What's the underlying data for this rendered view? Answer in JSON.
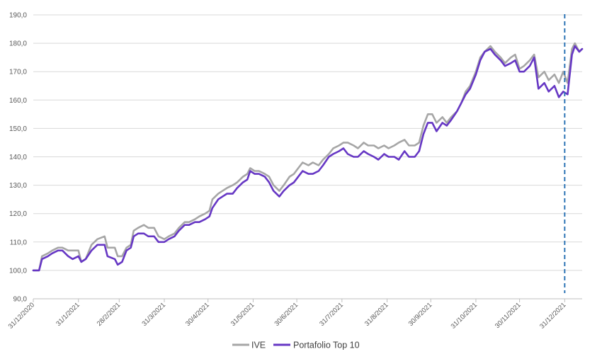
{
  "chart_data": {
    "type": "line",
    "title": "",
    "xlabel": "",
    "ylabel": "",
    "ylim": [
      90,
      190
    ],
    "y_ticks": [
      "90,0",
      "100,0",
      "110,0",
      "120,0",
      "130,0",
      "140,0",
      "150,0",
      "160,0",
      "170,0",
      "180,0",
      "190,0"
    ],
    "y_tick_values": [
      90,
      100,
      110,
      120,
      130,
      140,
      150,
      160,
      170,
      180,
      190
    ],
    "x_tick_labels": [
      "31/12/2020",
      "31/1/2021",
      "28/2/2021",
      "31/3/2021",
      "30/4/2021",
      "31/5/2021",
      "30/6/2021",
      "31/7/2021",
      "31/8/2021",
      "30/9/2021",
      "31/10/2021",
      "30/11/2021",
      "31/12/2021"
    ],
    "x_tick_dates": [
      "2020-12-31",
      "2021-01-31",
      "2021-02-28",
      "2021-03-31",
      "2021-04-30",
      "2021-05-31",
      "2021-06-30",
      "2021-07-31",
      "2021-08-31",
      "2021-09-30",
      "2021-10-31",
      "2021-11-30",
      "2021-12-31"
    ],
    "x_range": [
      "2020-12-31",
      "2022-01-12"
    ],
    "gridlines": "horizontal",
    "legend_position": "bottom",
    "vertical_marker": {
      "x": "2021-12-31",
      "style": "dashed",
      "color": "#2e75b6"
    },
    "series": [
      {
        "name": "IVE",
        "color": "#a6a6a6",
        "points": [
          [
            "2020-12-31",
            100
          ],
          [
            "2021-01-04",
            100
          ],
          [
            "2021-01-06",
            105
          ],
          [
            "2021-01-10",
            106
          ],
          [
            "2021-01-13",
            107
          ],
          [
            "2021-01-17",
            108
          ],
          [
            "2021-01-20",
            108
          ],
          [
            "2021-01-24",
            107
          ],
          [
            "2021-01-27",
            107
          ],
          [
            "2021-01-31",
            107
          ],
          [
            "2021-02-02",
            103
          ],
          [
            "2021-02-05",
            104
          ],
          [
            "2021-02-09",
            109
          ],
          [
            "2021-02-13",
            111
          ],
          [
            "2021-02-18",
            112
          ],
          [
            "2021-02-20",
            108
          ],
          [
            "2021-02-25",
            108
          ],
          [
            "2021-02-27",
            105
          ],
          [
            "2021-03-02",
            105
          ],
          [
            "2021-03-05",
            108
          ],
          [
            "2021-03-08",
            109
          ],
          [
            "2021-03-10",
            114
          ],
          [
            "2021-03-13",
            115
          ],
          [
            "2021-03-17",
            116
          ],
          [
            "2021-03-20",
            115
          ],
          [
            "2021-03-24",
            115
          ],
          [
            "2021-03-27",
            112
          ],
          [
            "2021-03-31",
            111
          ],
          [
            "2021-04-03",
            112
          ],
          [
            "2021-04-07",
            113
          ],
          [
            "2021-04-10",
            115
          ],
          [
            "2021-04-14",
            117
          ],
          [
            "2021-04-17",
            117
          ],
          [
            "2021-04-21",
            118
          ],
          [
            "2021-04-24",
            119
          ],
          [
            "2021-04-28",
            120
          ],
          [
            "2021-05-01",
            121
          ],
          [
            "2021-05-03",
            125
          ],
          [
            "2021-05-07",
            127
          ],
          [
            "2021-05-10",
            128
          ],
          [
            "2021-05-13",
            129
          ],
          [
            "2021-05-17",
            130
          ],
          [
            "2021-05-20",
            131
          ],
          [
            "2021-05-24",
            133
          ],
          [
            "2021-05-27",
            134
          ],
          [
            "2021-05-29",
            136
          ],
          [
            "2021-06-01",
            135
          ],
          [
            "2021-06-04",
            135
          ],
          [
            "2021-06-08",
            134
          ],
          [
            "2021-06-11",
            133
          ],
          [
            "2021-06-14",
            130
          ],
          [
            "2021-06-18",
            128
          ],
          [
            "2021-06-21",
            130
          ],
          [
            "2021-06-25",
            133
          ],
          [
            "2021-06-28",
            134
          ],
          [
            "2021-07-01",
            136
          ],
          [
            "2021-07-04",
            138
          ],
          [
            "2021-07-08",
            137
          ],
          [
            "2021-07-11",
            138
          ],
          [
            "2021-07-15",
            137
          ],
          [
            "2021-07-18",
            139
          ],
          [
            "2021-07-22",
            141
          ],
          [
            "2021-07-25",
            143
          ],
          [
            "2021-07-29",
            144
          ],
          [
            "2021-08-01",
            145
          ],
          [
            "2021-08-04",
            145
          ],
          [
            "2021-08-08",
            144
          ],
          [
            "2021-08-11",
            143
          ],
          [
            "2021-08-15",
            145
          ],
          [
            "2021-08-18",
            144
          ],
          [
            "2021-08-22",
            144
          ],
          [
            "2021-08-25",
            143
          ],
          [
            "2021-08-29",
            144
          ],
          [
            "2021-09-01",
            143
          ],
          [
            "2021-09-05",
            144
          ],
          [
            "2021-09-08",
            145
          ],
          [
            "2021-09-12",
            146
          ],
          [
            "2021-09-15",
            144
          ],
          [
            "2021-09-19",
            144
          ],
          [
            "2021-09-22",
            145
          ],
          [
            "2021-09-25",
            151
          ],
          [
            "2021-09-28",
            155
          ],
          [
            "2021-10-01",
            155
          ],
          [
            "2021-10-04",
            152
          ],
          [
            "2021-10-08",
            154
          ],
          [
            "2021-10-11",
            152
          ],
          [
            "2021-10-14",
            154
          ],
          [
            "2021-10-18",
            156
          ],
          [
            "2021-10-21",
            159
          ],
          [
            "2021-10-24",
            163
          ],
          [
            "2021-10-27",
            165
          ],
          [
            "2021-10-31",
            170
          ],
          [
            "2021-11-03",
            175
          ],
          [
            "2021-11-06",
            177
          ],
          [
            "2021-11-10",
            179
          ],
          [
            "2021-11-13",
            177
          ],
          [
            "2021-11-17",
            175
          ],
          [
            "2021-11-20",
            173
          ],
          [
            "2021-11-24",
            175
          ],
          [
            "2021-11-27",
            176
          ],
          [
            "2021-11-30",
            171
          ],
          [
            "2021-12-03",
            172
          ],
          [
            "2021-12-07",
            174
          ],
          [
            "2021-12-10",
            176
          ],
          [
            "2021-12-13",
            168
          ],
          [
            "2021-12-17",
            170
          ],
          [
            "2021-12-20",
            167
          ],
          [
            "2021-12-24",
            169
          ],
          [
            "2021-12-27",
            166
          ],
          [
            "2021-12-30",
            170
          ],
          [
            "2022-01-02",
            166
          ],
          [
            "2022-01-05",
            178
          ],
          [
            "2022-01-07",
            180
          ],
          [
            "2022-01-10",
            177
          ],
          [
            "2022-01-12",
            178
          ]
        ]
      },
      {
        "name": "Portafolio Top 10",
        "color": "#6637c4",
        "points": [
          [
            "2020-12-31",
            100
          ],
          [
            "2021-01-04",
            100
          ],
          [
            "2021-01-06",
            104
          ],
          [
            "2021-01-10",
            105
          ],
          [
            "2021-01-13",
            106
          ],
          [
            "2021-01-17",
            107
          ],
          [
            "2021-01-20",
            107
          ],
          [
            "2021-01-24",
            105
          ],
          [
            "2021-01-27",
            104
          ],
          [
            "2021-01-31",
            105
          ],
          [
            "2021-02-02",
            103
          ],
          [
            "2021-02-05",
            104
          ],
          [
            "2021-02-09",
            107
          ],
          [
            "2021-02-13",
            109
          ],
          [
            "2021-02-18",
            109
          ],
          [
            "2021-02-20",
            105
          ],
          [
            "2021-02-25",
            104
          ],
          [
            "2021-02-27",
            102
          ],
          [
            "2021-03-02",
            103
          ],
          [
            "2021-03-05",
            107
          ],
          [
            "2021-03-08",
            108
          ],
          [
            "2021-03-10",
            112
          ],
          [
            "2021-03-13",
            113
          ],
          [
            "2021-03-17",
            113
          ],
          [
            "2021-03-20",
            112
          ],
          [
            "2021-03-24",
            112
          ],
          [
            "2021-03-27",
            110
          ],
          [
            "2021-03-31",
            110
          ],
          [
            "2021-04-03",
            111
          ],
          [
            "2021-04-07",
            112
          ],
          [
            "2021-04-10",
            114
          ],
          [
            "2021-04-14",
            116
          ],
          [
            "2021-04-17",
            116
          ],
          [
            "2021-04-21",
            117
          ],
          [
            "2021-04-24",
            117
          ],
          [
            "2021-04-28",
            118
          ],
          [
            "2021-05-01",
            119
          ],
          [
            "2021-05-03",
            122
          ],
          [
            "2021-05-07",
            125
          ],
          [
            "2021-05-10",
            126
          ],
          [
            "2021-05-13",
            127
          ],
          [
            "2021-05-17",
            127
          ],
          [
            "2021-05-20",
            129
          ],
          [
            "2021-05-24",
            131
          ],
          [
            "2021-05-27",
            132
          ],
          [
            "2021-05-29",
            135
          ],
          [
            "2021-06-01",
            134
          ],
          [
            "2021-06-04",
            134
          ],
          [
            "2021-06-08",
            133
          ],
          [
            "2021-06-11",
            131
          ],
          [
            "2021-06-14",
            128
          ],
          [
            "2021-06-18",
            126
          ],
          [
            "2021-06-21",
            128
          ],
          [
            "2021-06-25",
            130
          ],
          [
            "2021-06-28",
            131
          ],
          [
            "2021-07-01",
            133
          ],
          [
            "2021-07-04",
            135
          ],
          [
            "2021-07-08",
            134
          ],
          [
            "2021-07-11",
            134
          ],
          [
            "2021-07-15",
            135
          ],
          [
            "2021-07-18",
            137
          ],
          [
            "2021-07-22",
            140
          ],
          [
            "2021-07-25",
            141
          ],
          [
            "2021-07-29",
            142
          ],
          [
            "2021-08-01",
            143
          ],
          [
            "2021-08-04",
            141
          ],
          [
            "2021-08-08",
            140
          ],
          [
            "2021-08-11",
            140
          ],
          [
            "2021-08-15",
            142
          ],
          [
            "2021-08-18",
            141
          ],
          [
            "2021-08-22",
            140
          ],
          [
            "2021-08-25",
            139
          ],
          [
            "2021-08-29",
            141
          ],
          [
            "2021-09-01",
            140
          ],
          [
            "2021-09-05",
            140
          ],
          [
            "2021-09-08",
            139
          ],
          [
            "2021-09-12",
            142
          ],
          [
            "2021-09-15",
            140
          ],
          [
            "2021-09-19",
            140
          ],
          [
            "2021-09-22",
            142
          ],
          [
            "2021-09-25",
            148
          ],
          [
            "2021-09-28",
            152
          ],
          [
            "2021-10-01",
            152
          ],
          [
            "2021-10-04",
            149
          ],
          [
            "2021-10-08",
            152
          ],
          [
            "2021-10-11",
            151
          ],
          [
            "2021-10-14",
            153
          ],
          [
            "2021-10-18",
            156
          ],
          [
            "2021-10-21",
            159
          ],
          [
            "2021-10-24",
            162
          ],
          [
            "2021-10-27",
            164
          ],
          [
            "2021-10-31",
            169
          ],
          [
            "2021-11-03",
            174
          ],
          [
            "2021-11-06",
            177
          ],
          [
            "2021-11-10",
            178
          ],
          [
            "2021-11-13",
            176
          ],
          [
            "2021-11-17",
            174
          ],
          [
            "2021-11-20",
            172
          ],
          [
            "2021-11-24",
            173
          ],
          [
            "2021-11-27",
            174
          ],
          [
            "2021-11-30",
            170
          ],
          [
            "2021-12-03",
            170
          ],
          [
            "2021-12-07",
            172
          ],
          [
            "2021-12-10",
            175
          ],
          [
            "2021-12-13",
            164
          ],
          [
            "2021-12-17",
            166
          ],
          [
            "2021-12-20",
            163
          ],
          [
            "2021-12-24",
            165
          ],
          [
            "2021-12-27",
            161
          ],
          [
            "2021-12-30",
            163
          ],
          [
            "2022-01-02",
            162
          ],
          [
            "2022-01-05",
            176
          ],
          [
            "2022-01-07",
            179
          ],
          [
            "2022-01-10",
            177
          ],
          [
            "2022-01-12",
            178
          ]
        ]
      }
    ]
  }
}
